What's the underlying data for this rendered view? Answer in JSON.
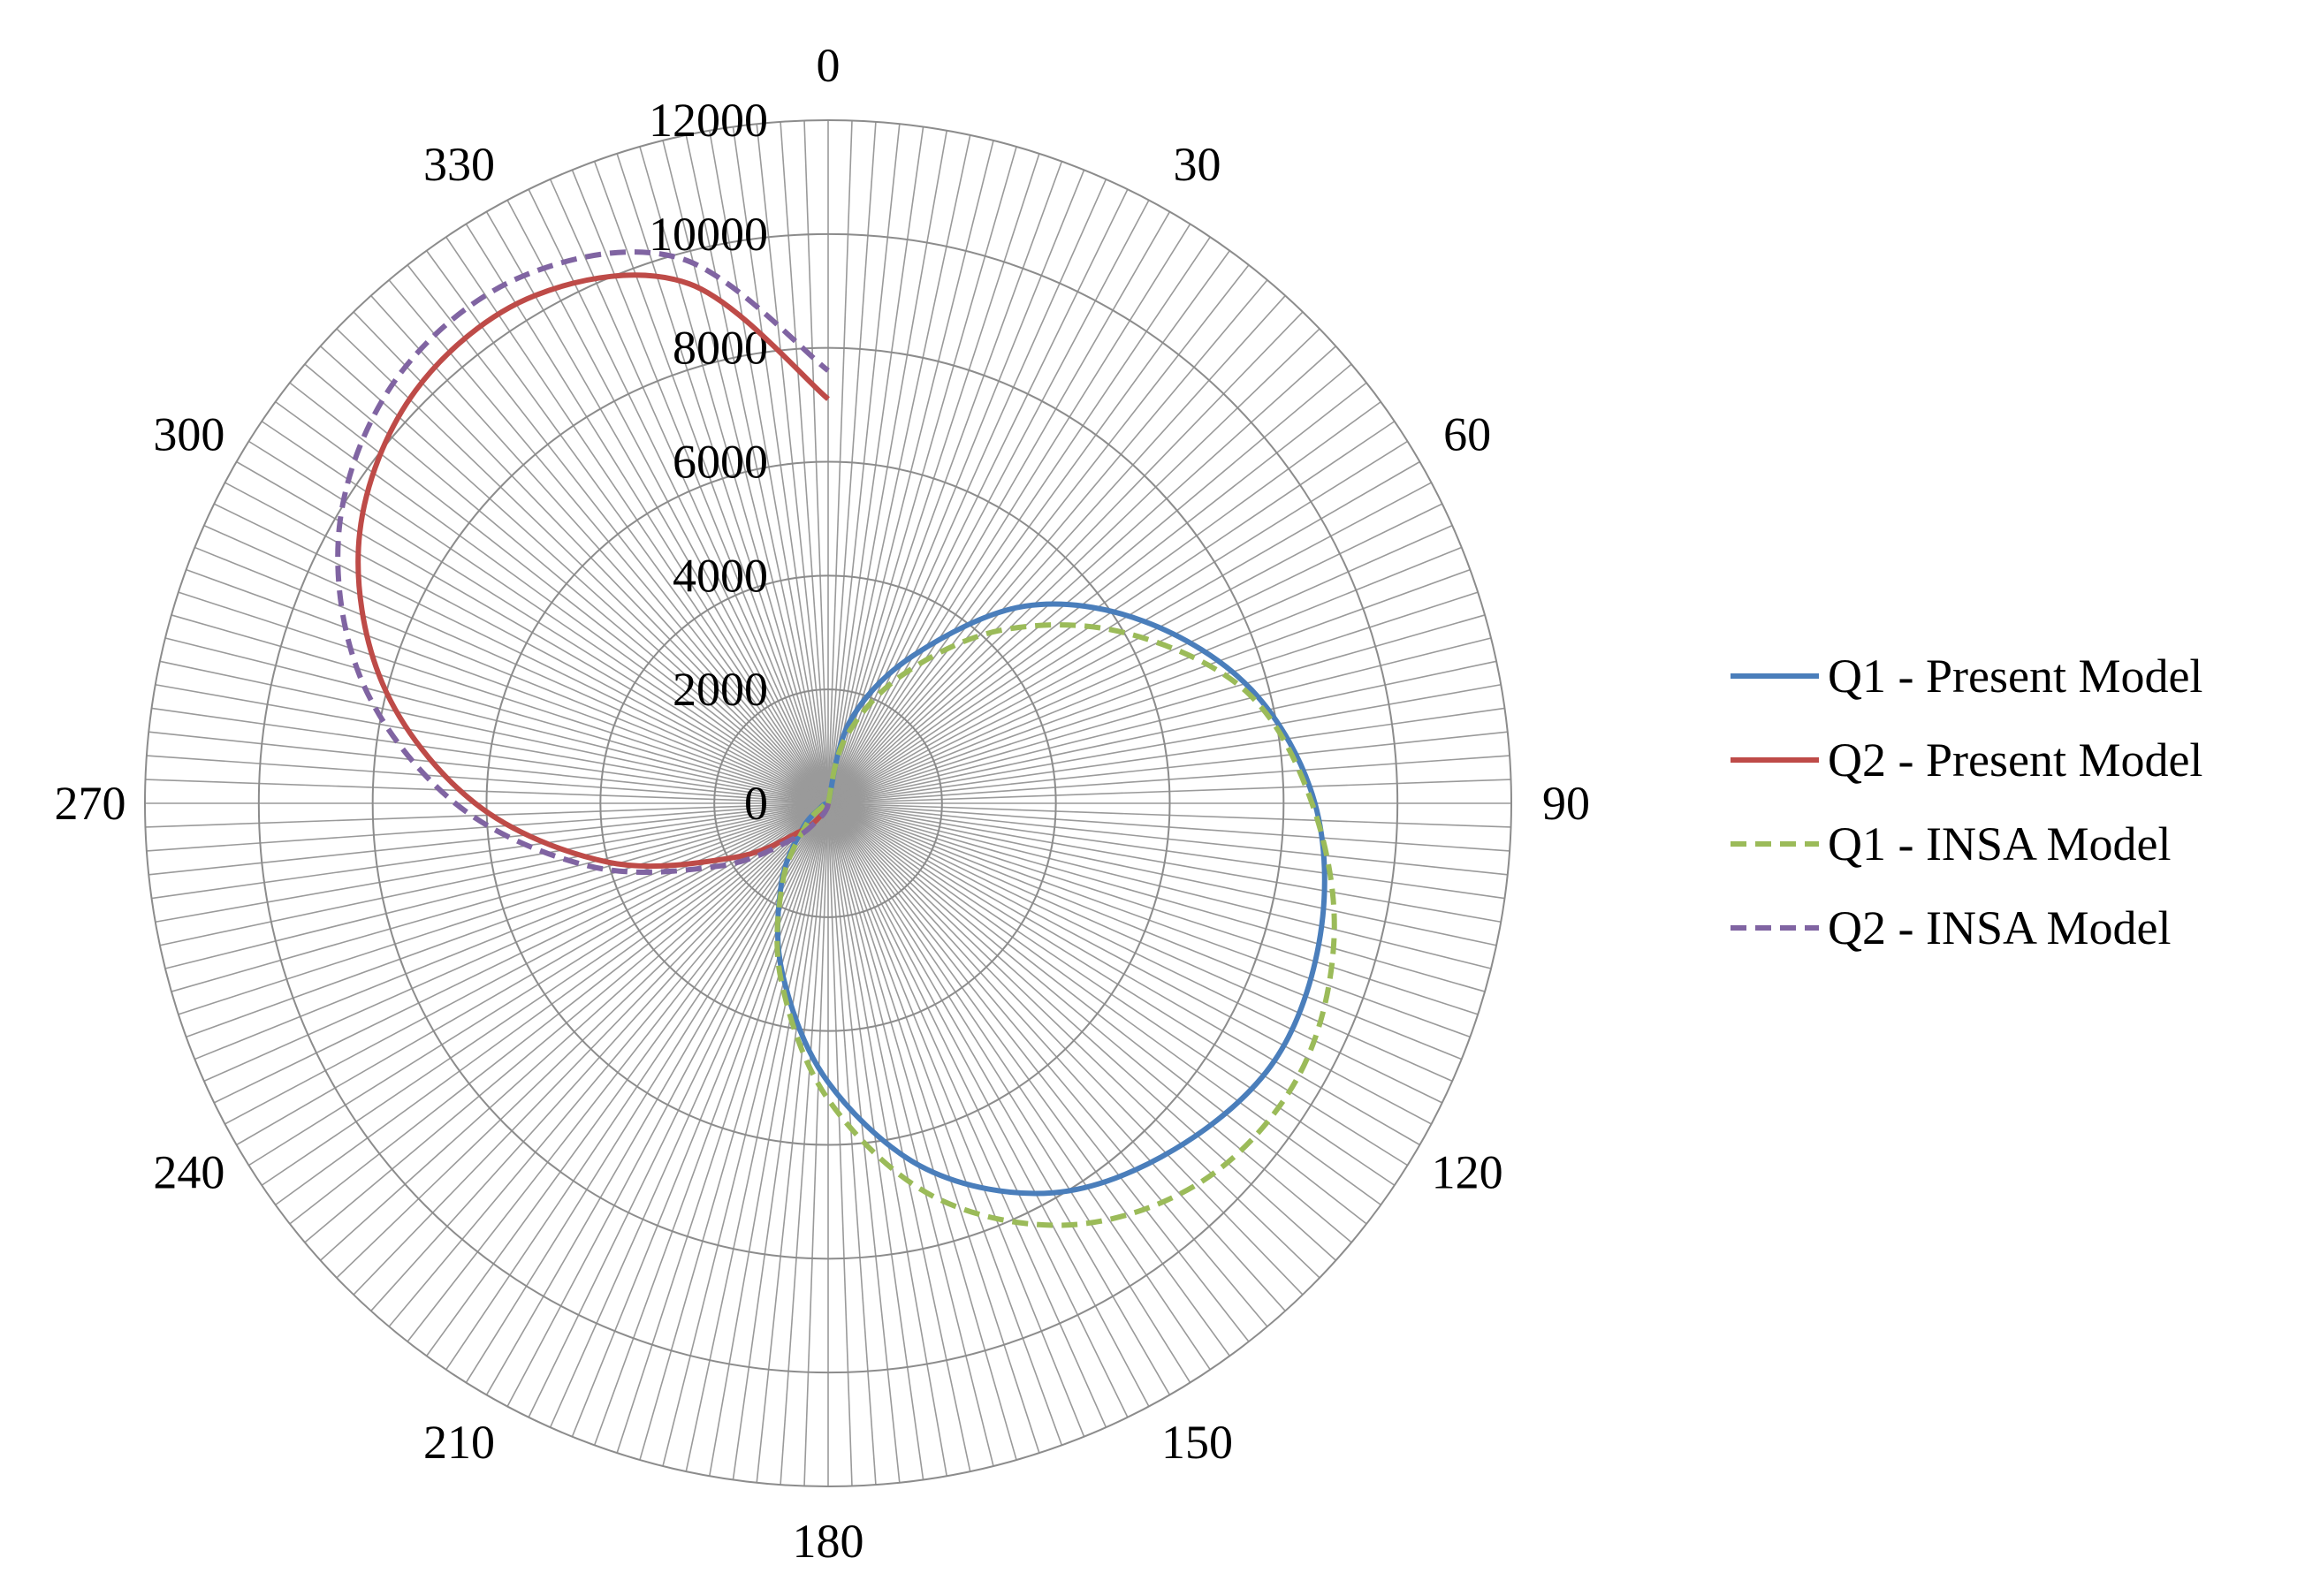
{
  "chart_data": {
    "type": "polar-line",
    "angle_direction": "clockwise",
    "angle_zero": "top",
    "angle_labels": [
      "0",
      "30",
      "60",
      "90",
      "120",
      "150",
      "180",
      "210",
      "240",
      "270",
      "300",
      "330"
    ],
    "angle_label_values": [
      0,
      30,
      60,
      90,
      120,
      150,
      180,
      210,
      240,
      270,
      300,
      330
    ],
    "radial_labels": [
      "0",
      "2000",
      "4000",
      "6000",
      "8000",
      "10000",
      "12000"
    ],
    "radial_label_values": [
      0,
      2000,
      4000,
      6000,
      8000,
      10000,
      12000
    ],
    "rlim": [
      0,
      12000
    ],
    "spoke_step_deg": 2,
    "grid": true,
    "legend_position": "right",
    "series": [
      {
        "name": "Q1 - Present Model",
        "color": "#4a7ebb",
        "dash": "solid",
        "theta": [
          0,
          15,
          30,
          45,
          60,
          75,
          90,
          105,
          120,
          135,
          150,
          165,
          180,
          195,
          210,
          225,
          240,
          255,
          270
        ],
        "r": [
          0,
          1500,
          3000,
          4900,
          6400,
          7700,
          8550,
          8950,
          9050,
          8600,
          7900,
          6650,
          4900,
          3100,
          1650,
          650,
          150,
          50,
          0
        ]
      },
      {
        "name": "Q2 - Present Model",
        "color": "#be4b48",
        "dash": "solid",
        "theta": [
          180,
          195,
          210,
          225,
          240,
          255,
          270,
          285,
          300,
          315,
          330,
          345,
          360
        ],
        "r": [
          0,
          100,
          250,
          700,
          1900,
          4000,
          6200,
          8100,
          9500,
          10250,
          10300,
          9450,
          7100
        ]
      },
      {
        "name": "Q1 - INSA Model",
        "color": "#9bbb59",
        "dash": "dashed",
        "theta": [
          0,
          15,
          30,
          45,
          60,
          75,
          90,
          105,
          120,
          135,
          150,
          165,
          180,
          195,
          210,
          225,
          240,
          255,
          270
        ],
        "r": [
          0,
          1200,
          2600,
          4300,
          6000,
          7600,
          8500,
          9200,
          9550,
          9350,
          8550,
          7150,
          5200,
          3200,
          1600,
          550,
          100,
          30,
          0
        ]
      },
      {
        "name": "Q2 - INSA Model",
        "color": "#8064a2",
        "dash": "dashed",
        "theta": [
          180,
          195,
          210,
          225,
          240,
          255,
          270,
          285,
          300,
          315,
          330,
          345,
          360
        ],
        "r": [
          0,
          100,
          300,
          900,
          2200,
          4300,
          6550,
          8500,
          9900,
          10650,
          10700,
          9900,
          7600
        ]
      }
    ]
  }
}
